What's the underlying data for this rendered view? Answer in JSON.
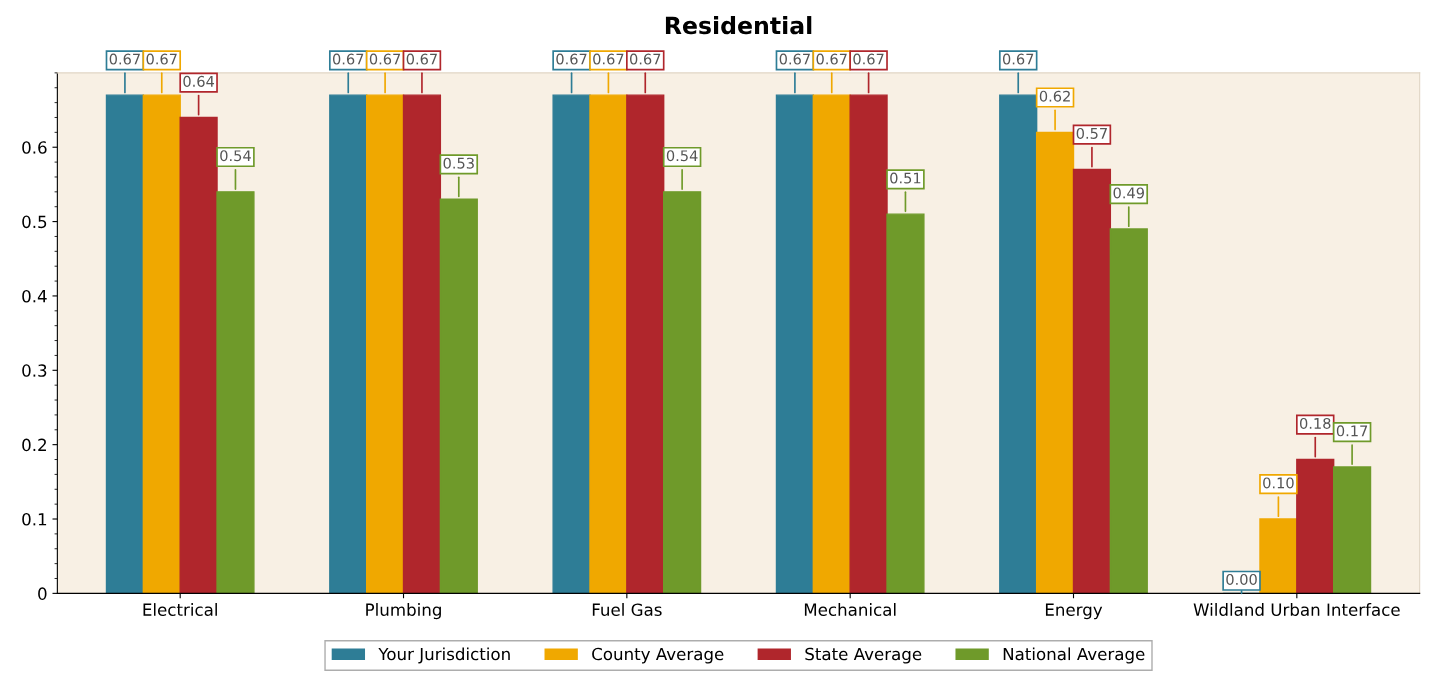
{
  "chart_data": {
    "type": "bar",
    "title": "Residential",
    "categories": [
      "Electrical",
      "Plumbing",
      "Fuel Gas",
      "Mechanical",
      "Energy",
      "Wildland Urban Interface"
    ],
    "series": [
      {
        "name": "Your Jurisdiction",
        "color": "#2e7d96",
        "values": [
          0.67,
          0.67,
          0.67,
          0.67,
          0.67,
          0.0
        ],
        "value_labels": [
          "0.67",
          "0.67",
          "0.67",
          "0.67",
          "0.67",
          "0.00"
        ]
      },
      {
        "name": "County Average",
        "color": "#f0a800",
        "values": [
          0.67,
          0.67,
          0.67,
          0.67,
          0.62,
          0.1
        ],
        "value_labels": [
          "0.67",
          "0.67",
          "0.67",
          "0.67",
          "0.62",
          "0.10"
        ]
      },
      {
        "name": "State Average",
        "color": "#b0262c",
        "values": [
          0.64,
          0.67,
          0.67,
          0.67,
          0.57,
          0.18
        ],
        "value_labels": [
          "0.64",
          "0.67",
          "0.67",
          "0.67",
          "0.57",
          "0.18"
        ]
      },
      {
        "name": "National Average",
        "color": "#6f9a2a",
        "values": [
          0.54,
          0.53,
          0.54,
          0.51,
          0.49,
          0.17
        ],
        "value_labels": [
          "0.54",
          "0.53",
          "0.54",
          "0.51",
          "0.49",
          "0.17"
        ]
      }
    ],
    "ylim": [
      0,
      0.7
    ],
    "yticks": [
      0,
      0.1,
      0.2,
      0.3,
      0.4,
      0.5,
      0.6
    ],
    "grid": false,
    "legend": "bottom"
  }
}
